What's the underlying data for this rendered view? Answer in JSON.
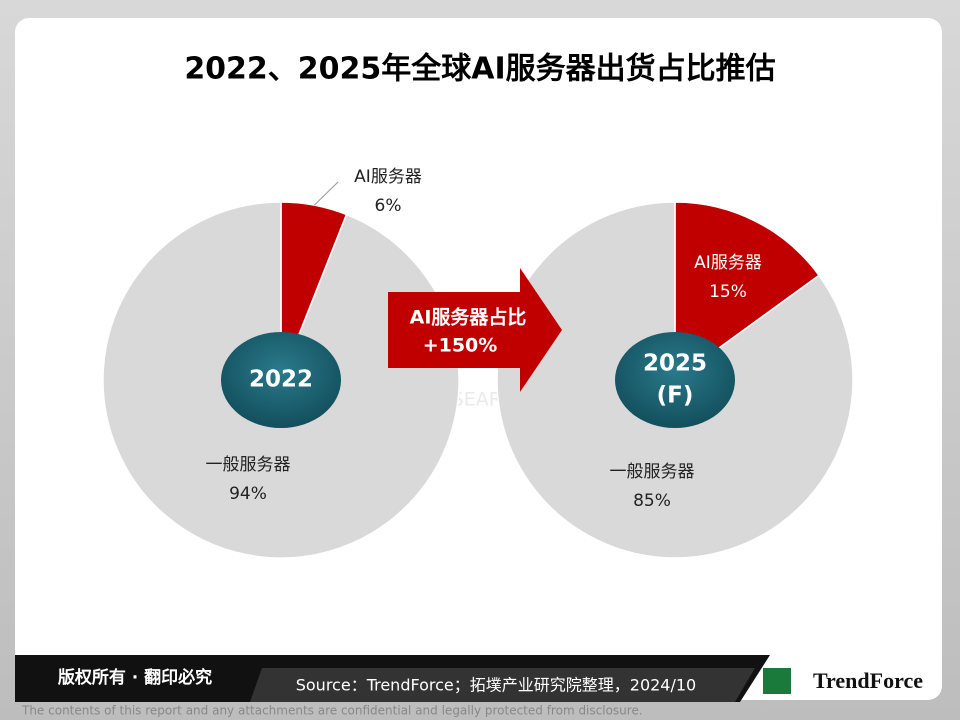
{
  "title": "2022、2025年全球AI服务器出货占比推估",
  "annotation": [
    "AI服务器占比",
    "+150%"
  ],
  "watermark": "TOPOLOGY RESEARCH INSTITUTE",
  "footer": {
    "rights": "版权所有 · 翻印必究",
    "source": "Source：TrendForce；拓墣产业研究院整理，2024/10",
    "logo": "TrendForce",
    "disclaimer": "The contents of this report and any attachments are confidential and legally protected from disclosure."
  },
  "chart_data": [
    {
      "type": "pie",
      "center_label": [
        "2022"
      ],
      "categories": [
        "AI服务器",
        "一般服务器"
      ],
      "values": [
        6,
        94
      ],
      "value_labels": [
        "6%",
        "94%"
      ],
      "colors": [
        "#c00000",
        "#d9d9d9"
      ]
    },
    {
      "type": "pie",
      "center_label": [
        "2025",
        "(F)"
      ],
      "categories": [
        "AI服务器",
        "一般服务器"
      ],
      "values": [
        15,
        85
      ],
      "value_labels": [
        "15%",
        "85%"
      ],
      "colors": [
        "#c00000",
        "#d9d9d9"
      ]
    }
  ]
}
